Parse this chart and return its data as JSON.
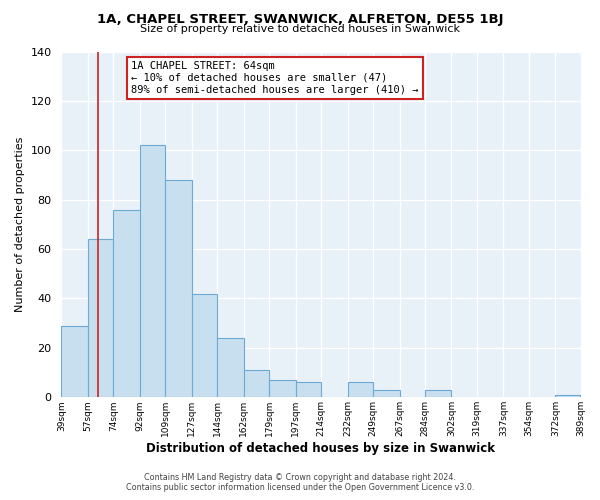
{
  "title": "1A, CHAPEL STREET, SWANWICK, ALFRETON, DE55 1BJ",
  "subtitle": "Size of property relative to detached houses in Swanwick",
  "xlabel": "Distribution of detached houses by size in Swanwick",
  "ylabel": "Number of detached properties",
  "bar_color": "#c8dff0",
  "bar_edge_color": "#6aaad4",
  "background_color": "#e8f0f8",
  "grid_color": "#ffffff",
  "bin_labels": [
    "39sqm",
    "57sqm",
    "74sqm",
    "92sqm",
    "109sqm",
    "127sqm",
    "144sqm",
    "162sqm",
    "179sqm",
    "197sqm",
    "214sqm",
    "232sqm",
    "249sqm",
    "267sqm",
    "284sqm",
    "302sqm",
    "319sqm",
    "337sqm",
    "354sqm",
    "372sqm",
    "389sqm"
  ],
  "bin_edges": [
    39,
    57,
    74,
    92,
    109,
    127,
    144,
    162,
    179,
    197,
    214,
    232,
    249,
    267,
    284,
    302,
    319,
    337,
    354,
    372,
    389
  ],
  "bar_heights": [
    29,
    64,
    76,
    102,
    88,
    42,
    24,
    11,
    7,
    6,
    0,
    6,
    3,
    0,
    3,
    0,
    0,
    0,
    0,
    1
  ],
  "ylim": [
    0,
    140
  ],
  "yticks": [
    0,
    20,
    40,
    60,
    80,
    100,
    120,
    140
  ],
  "property_line_x": 64,
  "annotation_line1": "1A CHAPEL STREET: 64sqm",
  "annotation_line2": "← 10% of detached houses are smaller (47)",
  "annotation_line3": "89% of semi-detached houses are larger (410) →",
  "footer_line1": "Contains HM Land Registry data © Crown copyright and database right 2024.",
  "footer_line2": "Contains public sector information licensed under the Open Government Licence v3.0."
}
